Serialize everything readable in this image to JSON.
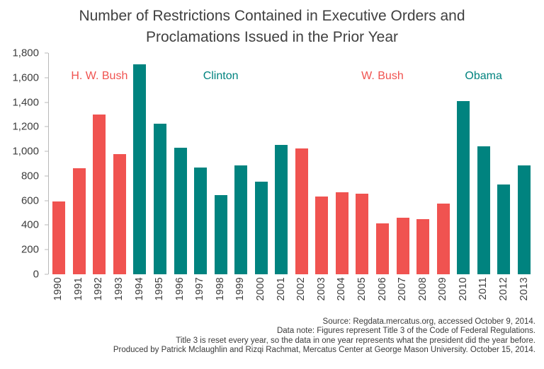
{
  "footer": {
    "line1": "Source: Regdata.mercatus.org, accessed October 9, 2014.",
    "line2": "Data note: Figures represent Title 3 of the Code of Federal Regulations.",
    "line3": "Title 3 is reset every year, so the data in one year represents what the president did the year before.",
    "line4": "Produced by Patrick Mclaughlin and Rizqi Rachmat, Mercatus Center at George Mason University. October 15, 2014."
  },
  "chart_data": {
    "type": "bar",
    "title": "Number of Restrictions Contained in Executive Orders and Proclamations Issued in the Prior Year",
    "categories": [
      "1990",
      "1991",
      "1992",
      "1993",
      "1994",
      "1995",
      "1996",
      "1997",
      "1998",
      "1999",
      "2000",
      "2001",
      "2002",
      "2003",
      "2004",
      "2005",
      "2006",
      "2007",
      "2008",
      "2009",
      "2010",
      "2011",
      "2012",
      "2013"
    ],
    "values": [
      590,
      860,
      1300,
      975,
      1710,
      1225,
      1030,
      870,
      645,
      885,
      755,
      1050,
      1025,
      635,
      665,
      655,
      415,
      460,
      450,
      575,
      1410,
      1040,
      730,
      885
    ],
    "bar_groups": [
      "hwbush",
      "hwbush",
      "hwbush",
      "hwbush",
      "clinton",
      "clinton",
      "clinton",
      "clinton",
      "clinton",
      "clinton",
      "clinton",
      "clinton",
      "wbush",
      "wbush",
      "wbush",
      "wbush",
      "wbush",
      "wbush",
      "wbush",
      "wbush",
      "obama",
      "obama",
      "obama",
      "obama"
    ],
    "group_colors": {
      "hwbush": "#f05350",
      "clinton": "#00837f",
      "wbush": "#f05350",
      "obama": "#00837f"
    },
    "annotations": [
      {
        "label": "H. W. Bush",
        "at_category": "1992",
        "color": "#f05350"
      },
      {
        "label": "Clinton",
        "at_category": "1998",
        "color": "#00837f"
      },
      {
        "label": "W. Bush",
        "at_category": "2006",
        "color": "#f05350"
      },
      {
        "label": "Obama",
        "at_category": "2011",
        "color": "#00837f"
      }
    ],
    "xlabel": "",
    "ylabel": "",
    "ylim": [
      0,
      1800
    ],
    "ytick_step": 200,
    "grid": false,
    "legend": "none"
  }
}
